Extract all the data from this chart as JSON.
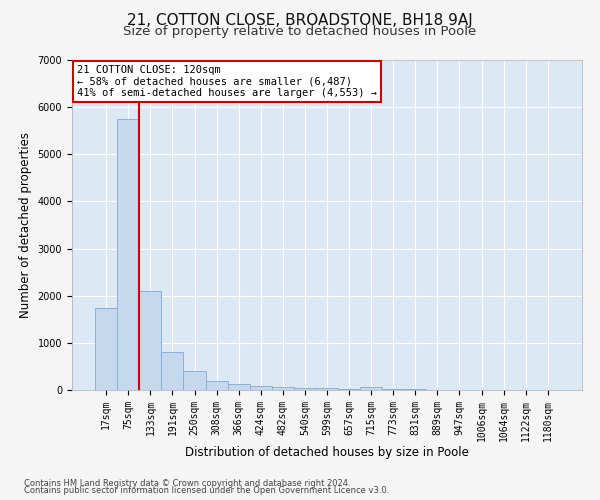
{
  "title": "21, COTTON CLOSE, BROADSTONE, BH18 9AJ",
  "subtitle": "Size of property relative to detached houses in Poole",
  "xlabel": "Distribution of detached houses by size in Poole",
  "ylabel": "Number of detached properties",
  "bar_labels": [
    "17sqm",
    "75sqm",
    "133sqm",
    "191sqm",
    "250sqm",
    "308sqm",
    "366sqm",
    "424sqm",
    "482sqm",
    "540sqm",
    "599sqm",
    "657sqm",
    "715sqm",
    "773sqm",
    "831sqm",
    "889sqm",
    "947sqm",
    "1006sqm",
    "1064sqm",
    "1122sqm",
    "1180sqm"
  ],
  "bar_values": [
    1750,
    5750,
    2100,
    800,
    400,
    190,
    130,
    80,
    65,
    50,
    50,
    30,
    55,
    20,
    20,
    10,
    5,
    5,
    2,
    2,
    2
  ],
  "bar_color": "#c5d8ee",
  "bar_edge_color": "#8ab0d4",
  "fig_bg_color": "#f5f5f5",
  "plot_bg_color": "#dde8f5",
  "grid_color": "#ffffff",
  "vline_color": "#cc0000",
  "vline_x_index": 1.5,
  "annotation_text": "21 COTTON CLOSE: 120sqm\n← 58% of detached houses are smaller (6,487)\n41% of semi-detached houses are larger (4,553) →",
  "annotation_box_color": "#cc0000",
  "ylim": [
    0,
    7000
  ],
  "yticks": [
    0,
    1000,
    2000,
    3000,
    4000,
    5000,
    6000,
    7000
  ],
  "footnote_line1": "Contains HM Land Registry data © Crown copyright and database right 2024.",
  "footnote_line2": "Contains public sector information licensed under the Open Government Licence v3.0.",
  "title_fontsize": 11,
  "subtitle_fontsize": 9.5,
  "axis_label_fontsize": 8.5,
  "tick_fontsize": 7,
  "annotation_fontsize": 7.5,
  "footnote_fontsize": 6
}
